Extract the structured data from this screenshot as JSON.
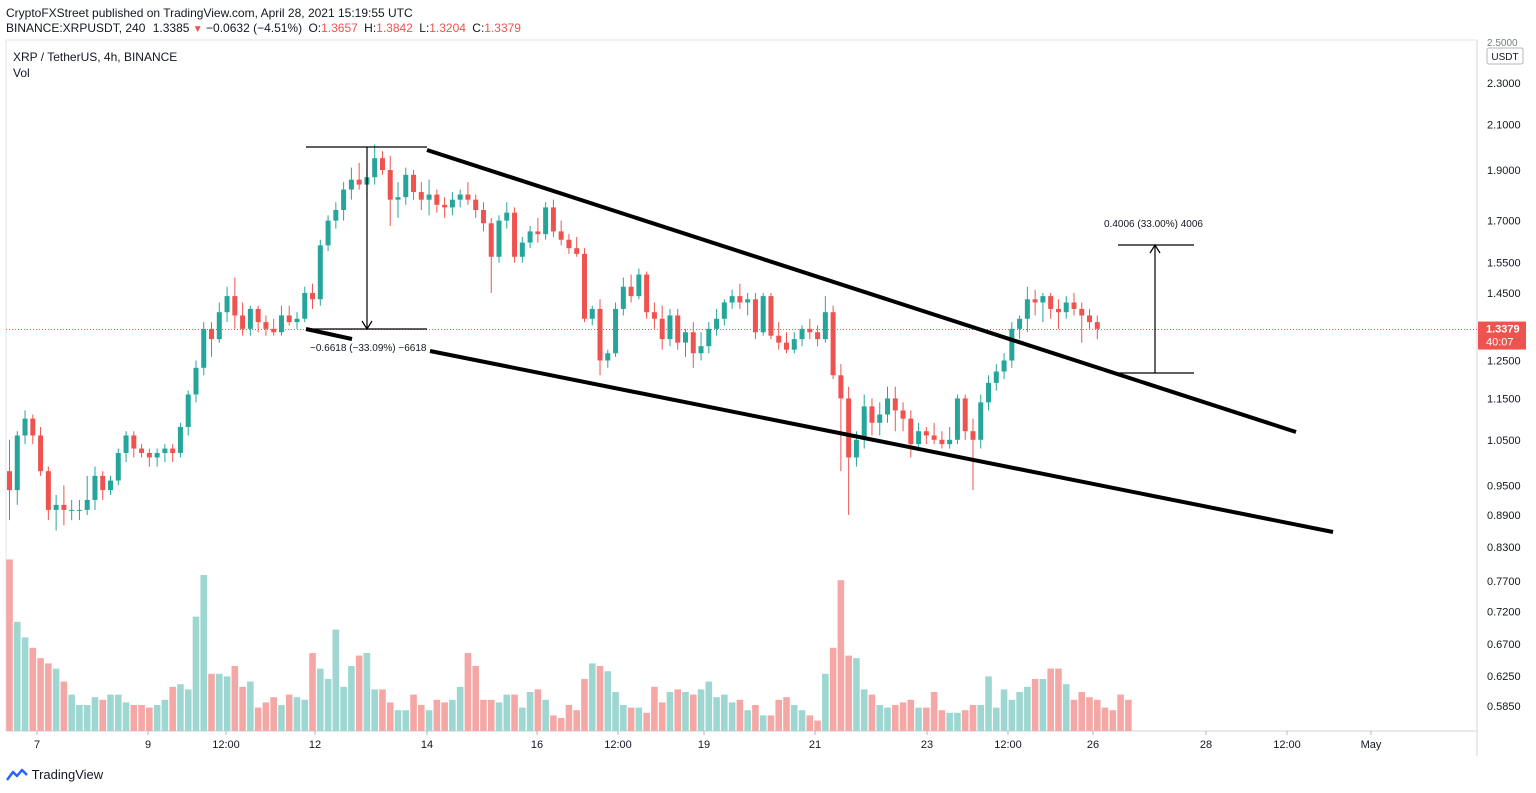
{
  "header": {
    "published_by": "CryptoFXStreet published on TradingView.com, April 28, 2021 15:19:55 UTC",
    "symbol": "BINANCE:XRPUSDT, 240",
    "last": "1.3385",
    "change_icon": "down-triangle-icon",
    "change": "−0.0632 (−4.51%)",
    "open_label": "O:",
    "open": "1.3657",
    "high_label": "H:",
    "high": "1.3842",
    "low_label": "L:",
    "low": "1.3204",
    "close_label": "C:",
    "close": "1.3379"
  },
  "legend": {
    "title": "XRP / TetherUS, 4h, BINANCE",
    "volume_label": "Vol"
  },
  "axis": {
    "currency": "USDT",
    "top_partial": "2.5000",
    "price_ticks": [
      "2.3000",
      "2.1000",
      "1.9000",
      "1.7000",
      "1.5500",
      "1.4500",
      "1.3500",
      "1.2500",
      "1.1500",
      "1.0500",
      "0.9500",
      "0.8900",
      "0.8300",
      "0.7700",
      "0.7200",
      "0.6700",
      "0.6250",
      "0.5850"
    ],
    "time_ticks": [
      "7",
      "9",
      "12:00",
      "12",
      "14",
      "16",
      "12:00",
      "19",
      "21",
      "23",
      "12:00",
      "26",
      "28",
      "12:00",
      "May"
    ],
    "last_price": "1.3379",
    "countdown": "40:07"
  },
  "annotations": {
    "drop_measure": "−0.6618 (−33.09%) −6618",
    "rise_measure": "0.4006 (33.00%) 4006"
  },
  "brand": {
    "name": "TradingView",
    "icon": "tradingview-logo-icon"
  },
  "colors": {
    "up": "#26a69a",
    "down": "#ef5350",
    "vol_up": "#9ed7d1",
    "vol_down": "#f5a7a6",
    "lines": "#000000"
  },
  "chart_data": {
    "type": "candlestick",
    "title": "XRP / TetherUS, 4h, BINANCE",
    "price_range": [
      0.8,
      2.5
    ],
    "price_scale": "log",
    "candles": [
      [
        0.98,
        1.05,
        0.88,
        0.94
      ],
      [
        0.94,
        1.07,
        0.91,
        1.06
      ],
      [
        1.06,
        1.12,
        1.04,
        1.1
      ],
      [
        1.1,
        1.11,
        1.04,
        1.06
      ],
      [
        1.06,
        1.08,
        0.97,
        0.98
      ],
      [
        0.98,
        0.99,
        0.88,
        0.9
      ],
      [
        0.9,
        0.93,
        0.86,
        0.91
      ],
      [
        0.91,
        0.95,
        0.87,
        0.9
      ],
      [
        0.9,
        0.92,
        0.88,
        0.9
      ],
      [
        0.9,
        0.92,
        0.88,
        0.9
      ],
      [
        0.9,
        0.97,
        0.89,
        0.92
      ],
      [
        0.92,
        0.99,
        0.9,
        0.97
      ],
      [
        0.97,
        0.98,
        0.92,
        0.94
      ],
      [
        0.94,
        0.97,
        0.93,
        0.96
      ],
      [
        0.96,
        1.03,
        0.95,
        1.02
      ],
      [
        1.02,
        1.07,
        1.0,
        1.06
      ],
      [
        1.06,
        1.07,
        1.01,
        1.03
      ],
      [
        1.03,
        1.04,
        1.01,
        1.02
      ],
      [
        1.02,
        1.03,
        0.99,
        1.01
      ],
      [
        1.01,
        1.03,
        0.99,
        1.02
      ],
      [
        1.02,
        1.04,
        1.0,
        1.03
      ],
      [
        1.03,
        1.04,
        1.0,
        1.02
      ],
      [
        1.02,
        1.09,
        1.01,
        1.08
      ],
      [
        1.08,
        1.17,
        1.06,
        1.16
      ],
      [
        1.16,
        1.25,
        1.14,
        1.23
      ],
      [
        1.23,
        1.36,
        1.21,
        1.34
      ],
      [
        1.34,
        1.36,
        1.26,
        1.31
      ],
      [
        1.31,
        1.42,
        1.3,
        1.39
      ],
      [
        1.39,
        1.47,
        1.36,
        1.44
      ],
      [
        1.44,
        1.5,
        1.34,
        1.38
      ],
      [
        1.38,
        1.42,
        1.32,
        1.34
      ],
      [
        1.34,
        1.41,
        1.32,
        1.4
      ],
      [
        1.4,
        1.41,
        1.33,
        1.36
      ],
      [
        1.36,
        1.38,
        1.32,
        1.34
      ],
      [
        1.34,
        1.37,
        1.32,
        1.33
      ],
      [
        1.33,
        1.41,
        1.32,
        1.38
      ],
      [
        1.38,
        1.41,
        1.35,
        1.36
      ],
      [
        1.36,
        1.39,
        1.34,
        1.37
      ],
      [
        1.37,
        1.47,
        1.36,
        1.45
      ],
      [
        1.45,
        1.48,
        1.4,
        1.43
      ],
      [
        1.43,
        1.63,
        1.41,
        1.61
      ],
      [
        1.61,
        1.72,
        1.59,
        1.7
      ],
      [
        1.7,
        1.77,
        1.67,
        1.74
      ],
      [
        1.74,
        1.85,
        1.7,
        1.82
      ],
      [
        1.82,
        1.91,
        1.78,
        1.86
      ],
      [
        1.86,
        1.93,
        1.82,
        1.84
      ],
      [
        1.84,
        1.9,
        1.79,
        1.87
      ],
      [
        1.87,
        2.01,
        1.84,
        1.95
      ],
      [
        1.95,
        1.98,
        1.88,
        1.9
      ],
      [
        1.9,
        1.96,
        1.68,
        1.78
      ],
      [
        1.78,
        1.85,
        1.71,
        1.79
      ],
      [
        1.79,
        1.91,
        1.76,
        1.88
      ],
      [
        1.88,
        1.9,
        1.78,
        1.81
      ],
      [
        1.81,
        1.85,
        1.74,
        1.78
      ],
      [
        1.78,
        1.86,
        1.72,
        1.8
      ],
      [
        1.8,
        1.82,
        1.73,
        1.76
      ],
      [
        1.76,
        1.79,
        1.71,
        1.75
      ],
      [
        1.75,
        1.81,
        1.72,
        1.78
      ],
      [
        1.78,
        1.82,
        1.75,
        1.8
      ],
      [
        1.8,
        1.85,
        1.76,
        1.78
      ],
      [
        1.78,
        1.8,
        1.71,
        1.74
      ],
      [
        1.74,
        1.77,
        1.66,
        1.69
      ],
      [
        1.69,
        1.71,
        1.45,
        1.57
      ],
      [
        1.57,
        1.72,
        1.55,
        1.7
      ],
      [
        1.7,
        1.77,
        1.67,
        1.73
      ],
      [
        1.73,
        1.75,
        1.55,
        1.57
      ],
      [
        1.57,
        1.64,
        1.55,
        1.62
      ],
      [
        1.62,
        1.68,
        1.6,
        1.66
      ],
      [
        1.66,
        1.71,
        1.62,
        1.65
      ],
      [
        1.65,
        1.77,
        1.63,
        1.75
      ],
      [
        1.75,
        1.78,
        1.64,
        1.66
      ],
      [
        1.66,
        1.7,
        1.61,
        1.63
      ],
      [
        1.63,
        1.65,
        1.58,
        1.6
      ],
      [
        1.6,
        1.64,
        1.57,
        1.58
      ],
      [
        1.58,
        1.6,
        1.36,
        1.37
      ],
      [
        1.37,
        1.41,
        1.35,
        1.4
      ],
      [
        1.4,
        1.43,
        1.21,
        1.25
      ],
      [
        1.25,
        1.28,
        1.23,
        1.27
      ],
      [
        1.27,
        1.42,
        1.26,
        1.4
      ],
      [
        1.4,
        1.5,
        1.38,
        1.47
      ],
      [
        1.47,
        1.51,
        1.42,
        1.44
      ],
      [
        1.44,
        1.53,
        1.43,
        1.51
      ],
      [
        1.51,
        1.52,
        1.37,
        1.39
      ],
      [
        1.39,
        1.42,
        1.34,
        1.37
      ],
      [
        1.37,
        1.41,
        1.28,
        1.31
      ],
      [
        1.31,
        1.4,
        1.29,
        1.38
      ],
      [
        1.38,
        1.4,
        1.28,
        1.3
      ],
      [
        1.3,
        1.34,
        1.26,
        1.33
      ],
      [
        1.33,
        1.36,
        1.23,
        1.27
      ],
      [
        1.27,
        1.33,
        1.25,
        1.29
      ],
      [
        1.29,
        1.36,
        1.27,
        1.34
      ],
      [
        1.34,
        1.4,
        1.32,
        1.37
      ],
      [
        1.37,
        1.43,
        1.35,
        1.42
      ],
      [
        1.42,
        1.46,
        1.4,
        1.44
      ],
      [
        1.44,
        1.48,
        1.4,
        1.42
      ],
      [
        1.42,
        1.45,
        1.38,
        1.43
      ],
      [
        1.43,
        1.45,
        1.31,
        1.33
      ],
      [
        1.33,
        1.45,
        1.32,
        1.44
      ],
      [
        1.44,
        1.45,
        1.31,
        1.32
      ],
      [
        1.32,
        1.36,
        1.28,
        1.3
      ],
      [
        1.3,
        1.33,
        1.27,
        1.28
      ],
      [
        1.28,
        1.33,
        1.27,
        1.31
      ],
      [
        1.31,
        1.35,
        1.29,
        1.34
      ],
      [
        1.34,
        1.37,
        1.31,
        1.33
      ],
      [
        1.33,
        1.35,
        1.29,
        1.31
      ],
      [
        1.31,
        1.44,
        1.3,
        1.39
      ],
      [
        1.39,
        1.41,
        1.2,
        1.21
      ],
      [
        1.21,
        1.24,
        0.98,
        1.15
      ],
      [
        1.15,
        1.18,
        0.89,
        1.01
      ],
      [
        1.01,
        1.07,
        0.99,
        1.05
      ],
      [
        1.05,
        1.16,
        1.03,
        1.13
      ],
      [
        1.13,
        1.15,
        1.06,
        1.09
      ],
      [
        1.09,
        1.14,
        1.06,
        1.11
      ],
      [
        1.11,
        1.18,
        1.09,
        1.15
      ],
      [
        1.15,
        1.18,
        1.07,
        1.12
      ],
      [
        1.12,
        1.14,
        1.07,
        1.1
      ],
      [
        1.1,
        1.12,
        1.01,
        1.04
      ],
      [
        1.04,
        1.09,
        1.03,
        1.07
      ],
      [
        1.07,
        1.08,
        1.04,
        1.06
      ],
      [
        1.06,
        1.09,
        1.04,
        1.05
      ],
      [
        1.05,
        1.07,
        1.03,
        1.04
      ],
      [
        1.04,
        1.08,
        1.03,
        1.05
      ],
      [
        1.05,
        1.16,
        1.04,
        1.15
      ],
      [
        1.15,
        1.16,
        1.05,
        1.07
      ],
      [
        1.07,
        1.1,
        0.94,
        1.05
      ],
      [
        1.05,
        1.16,
        1.03,
        1.14
      ],
      [
        1.14,
        1.21,
        1.12,
        1.19
      ],
      [
        1.19,
        1.24,
        1.17,
        1.22
      ],
      [
        1.22,
        1.27,
        1.2,
        1.25
      ],
      [
        1.25,
        1.36,
        1.23,
        1.34
      ],
      [
        1.34,
        1.38,
        1.31,
        1.37
      ],
      [
        1.37,
        1.47,
        1.33,
        1.43
      ],
      [
        1.43,
        1.46,
        1.38,
        1.42
      ],
      [
        1.42,
        1.45,
        1.36,
        1.44
      ],
      [
        1.44,
        1.45,
        1.37,
        1.4
      ],
      [
        1.4,
        1.43,
        1.34,
        1.39
      ],
      [
        1.39,
        1.44,
        1.37,
        1.42
      ],
      [
        1.42,
        1.45,
        1.38,
        1.4
      ],
      [
        1.4,
        1.42,
        1.3,
        1.38
      ],
      [
        1.38,
        1.4,
        1.34,
        1.36
      ],
      [
        1.36,
        1.38,
        1.31,
        1.34
      ]
    ],
    "volume": [
      0.66,
      0.42,
      0.36,
      0.32,
      0.28,
      0.26,
      0.24,
      0.19,
      0.14,
      0.1,
      0.1,
      0.13,
      0.12,
      0.14,
      0.14,
      0.11,
      0.1,
      0.1,
      0.09,
      0.1,
      0.12,
      0.17,
      0.18,
      0.16,
      0.44,
      0.6,
      0.22,
      0.22,
      0.21,
      0.25,
      0.17,
      0.19,
      0.09,
      0.11,
      0.13,
      0.1,
      0.14,
      0.13,
      0.12,
      0.3,
      0.24,
      0.2,
      0.39,
      0.17,
      0.25,
      0.29,
      0.3,
      0.16,
      0.16,
      0.11,
      0.08,
      0.08,
      0.14,
      0.1,
      0.08,
      0.12,
      0.11,
      0.12,
      0.17,
      0.3,
      0.25,
      0.12,
      0.12,
      0.11,
      0.14,
      0.14,
      0.09,
      0.15,
      0.16,
      0.12,
      0.06,
      0.05,
      0.1,
      0.08,
      0.2,
      0.26,
      0.25,
      0.23,
      0.15,
      0.1,
      0.09,
      0.09,
      0.07,
      0.17,
      0.11,
      0.15,
      0.16,
      0.15,
      0.14,
      0.16,
      0.19,
      0.13,
      0.14,
      0.11,
      0.12,
      0.08,
      0.1,
      0.06,
      0.06,
      0.12,
      0.13,
      0.1,
      0.08,
      0.06,
      0.04,
      0.22,
      0.32,
      0.58,
      0.29,
      0.28,
      0.16,
      0.14,
      0.1,
      0.09,
      0.1,
      0.11,
      0.12,
      0.09,
      0.09,
      0.15,
      0.08,
      0.07,
      0.07,
      0.08,
      0.1,
      0.1,
      0.21,
      0.09,
      0.16,
      0.12,
      0.15,
      0.17,
      0.2,
      0.2,
      0.24,
      0.24,
      0.18,
      0.12,
      0.15,
      0.13,
      0.12,
      0.09,
      0.08,
      0.14,
      0.12
    ]
  }
}
